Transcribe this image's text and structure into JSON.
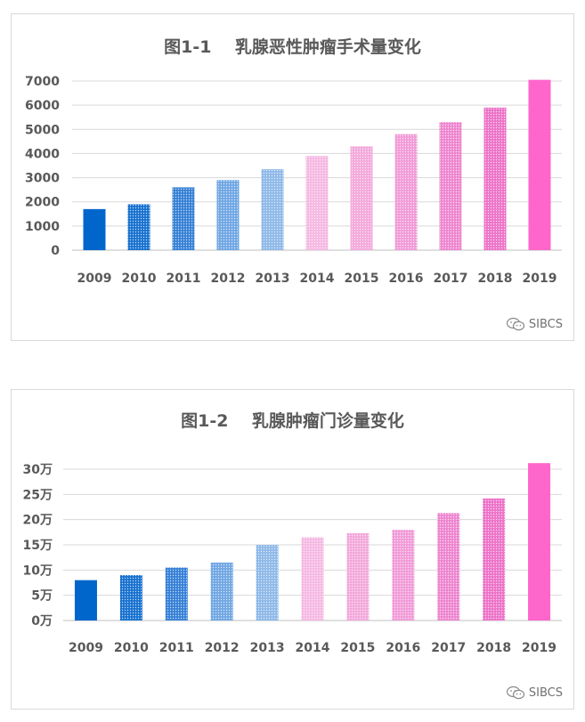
{
  "chart_data": [
    {
      "type": "bar",
      "title": "图1-1    乳腺恶性肿瘤手术量变化",
      "categories": [
        "2009",
        "2010",
        "2011",
        "2012",
        "2013",
        "2014",
        "2015",
        "2016",
        "2017",
        "2018",
        "2019"
      ],
      "values": [
        1700,
        1900,
        2600,
        2900,
        3350,
        3900,
        4300,
        4800,
        5300,
        5900,
        7050
      ],
      "yticks": [
        "0",
        "1000",
        "2000",
        "3000",
        "4000",
        "5000",
        "6000",
        "7000"
      ],
      "ylim": [
        0,
        7000
      ],
      "grid": true,
      "xlabel": "",
      "ylabel": "",
      "colors": [
        "#0066cc",
        "#1670cf",
        "#3580d6",
        "#6ea6e3",
        "#8db8e8",
        "#f5b8e2",
        "#f3a8dc",
        "#f19ad7",
        "#ee85cf",
        "#ec72c8",
        "#ff66cc"
      ]
    },
    {
      "type": "bar",
      "title": "图1-2    乳腺肿瘤门诊量变化",
      "categories": [
        "2009",
        "2010",
        "2011",
        "2012",
        "2013",
        "2014",
        "2015",
        "2016",
        "2017",
        "2018",
        "2019"
      ],
      "values": [
        8,
        9,
        10.5,
        11.5,
        15,
        16.5,
        17.3,
        18,
        21.3,
        24.2,
        31.2
      ],
      "yticks": [
        "0万",
        "5万",
        "10万",
        "15万",
        "20万",
        "25万",
        "30万"
      ],
      "ylim": [
        0,
        30
      ],
      "grid": true,
      "xlabel": "",
      "ylabel": "",
      "colors": [
        "#0066cc",
        "#1670cf",
        "#3580d6",
        "#6ea6e3",
        "#8db8e8",
        "#f5b8e2",
        "#f3a8dc",
        "#f19ad7",
        "#ee85cf",
        "#ec72c8",
        "#ff66cc"
      ]
    }
  ],
  "watermark": "SIBCS",
  "watermark_icon": "wechat-icon"
}
